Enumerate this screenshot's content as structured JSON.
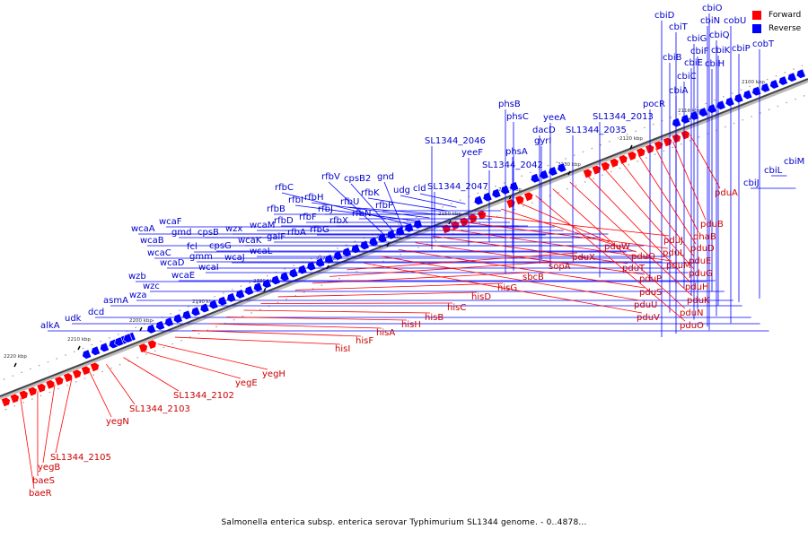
{
  "caption": "Salmonella enterica subsp. enterica serovar Typhimurium SL1344 genome. - 0..4878...",
  "legend": {
    "forward": {
      "label": "Forward",
      "color": "#ff0000"
    },
    "reverse": {
      "label": "Reverse",
      "color": "#0000ff"
    }
  },
  "scale_unit": "kbp",
  "tick_labels": [
    "2100 kbp",
    "2110 kbp",
    "2120 kbp",
    "2130 kbp",
    "2140 kbp",
    "2150 kbp",
    "2160 kbp",
    "2170 kbp",
    "2180 kbp",
    "2190 kbp",
    "2200 kbp",
    "2210 kbp",
    "2220 kbp"
  ],
  "reverse_genes": [
    "cbiD",
    "cbiT",
    "cbiO",
    "cbiN",
    "cobU",
    "cbiG",
    "cbiQ",
    "cbiB",
    "cbiF",
    "cbiK",
    "cbiP",
    "cobT",
    "cbiE",
    "cbiH",
    "cbiC",
    "cbiA",
    "pocR",
    "SL1344_2013",
    "phsB",
    "phsC",
    "yeeA",
    "dacD",
    "gyrI",
    "SL1344_2035",
    "phsA",
    "SL1344_2046",
    "yeeF",
    "SL1344_2042",
    "SL1344_2047",
    "rfbV",
    "cpsB2",
    "gnd",
    "rfbC",
    "rfbI",
    "rfbH",
    "rfbU",
    "rfbK",
    "udg",
    "cld",
    "rfbB",
    "rfbJ",
    "rfbN",
    "rfbP",
    "rfbF",
    "rfbD",
    "rfbX",
    "rfbA",
    "rfbG",
    "wcaF",
    "wcaM",
    "galF",
    "wcaA",
    "gmd",
    "cpsB",
    "wzx",
    "wcaB",
    "fcl",
    "cpsG",
    "wcaK",
    "wcaC",
    "gmm",
    "wcaL",
    "wcaD",
    "wcaI",
    "wcaJ",
    "wzb",
    "wcaE",
    "wzc",
    "wza",
    "asmA",
    "dcd",
    "udk",
    "alkA",
    "cbiM",
    "cbiL",
    "cbiJ"
  ],
  "forward_genes": [
    "pduA",
    "pduB",
    "dhaB",
    "pduD",
    "pduE",
    "pduG",
    "pduH",
    "pduK",
    "pduN",
    "pduO",
    "pduW",
    "pduQ",
    "pduJ",
    "pduL",
    "pduM",
    "pduT",
    "pduP",
    "pduS",
    "pduU",
    "pduV",
    "pduX",
    "sopA",
    "sbcB",
    "hisG",
    "hisD",
    "hisC",
    "hisB",
    "hisH",
    "hisA",
    "hisF",
    "hisI",
    "yegH",
    "yegE",
    "SL1344_2102",
    "SL1344_2103",
    "yegN",
    "SL1344_2105",
    "yegB",
    "baeS",
    "baeR"
  ]
}
